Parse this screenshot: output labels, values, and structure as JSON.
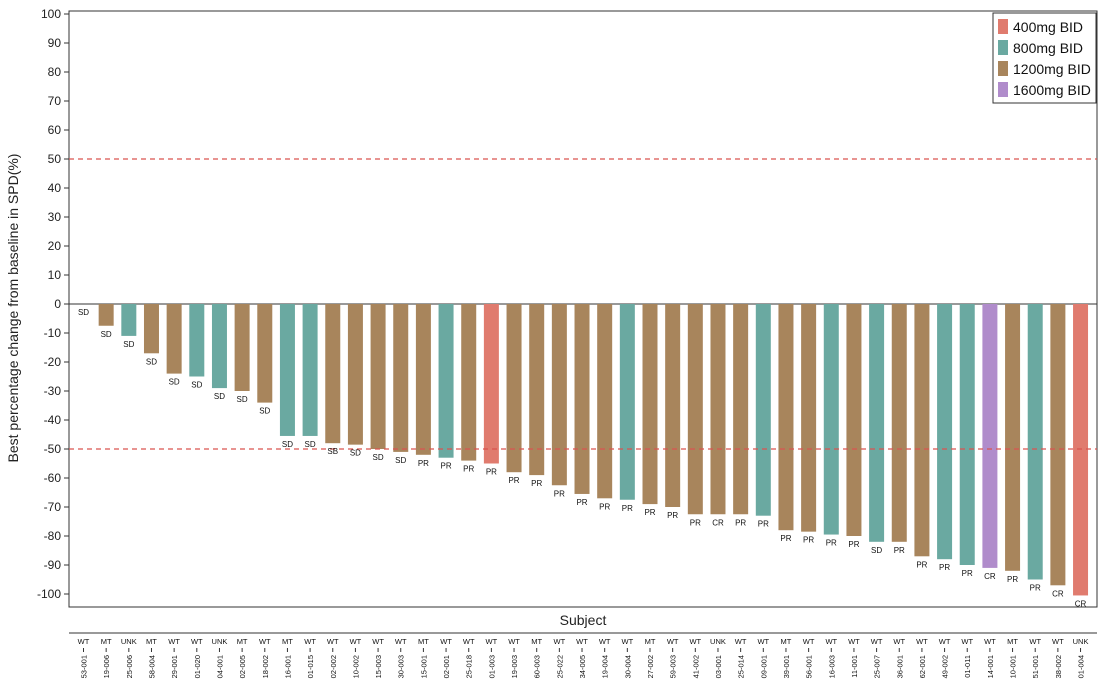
{
  "chart_data": {
    "type": "bar",
    "title": "",
    "xlabel": "Subject",
    "ylabel": "Best percentage change from baseline in SPD(%)",
    "ylim": [
      -100,
      100
    ],
    "yticks": [
      100,
      90,
      80,
      70,
      60,
      50,
      40,
      30,
      20,
      10,
      0,
      -10,
      -20,
      -30,
      -40,
      -50,
      -60,
      -70,
      -80,
      -90,
      -100
    ],
    "reference_lines": [
      50,
      -50
    ],
    "grid": false,
    "legend_position": "top-right",
    "legend": [
      {
        "name": "400mg BID",
        "color": "#E07B6E"
      },
      {
        "name": "800mg BID",
        "color": "#6AA9A1"
      },
      {
        "name": "1200mg BID",
        "color": "#A8855C"
      },
      {
        "name": "1600mg BID",
        "color": "#B08CCB"
      }
    ],
    "categories": [
      "53-001",
      "19-006",
      "25-006",
      "58-004",
      "29-001",
      "01-020",
      "04-001",
      "02-005",
      "18-002",
      "16-001",
      "01-015",
      "02-002",
      "10-002",
      "15-003",
      "30-003",
      "15-001",
      "02-001",
      "25-018",
      "01-003",
      "19-003",
      "60-003",
      "25-022",
      "34-005",
      "19-004",
      "30-004",
      "27-002",
      "59-003",
      "41-002",
      "03-001",
      "25-014",
      "09-001",
      "39-001",
      "56-001",
      "16-003",
      "11-001",
      "25-007",
      "36-001",
      "62-001",
      "49-002",
      "01-011",
      "14-001",
      "10-001",
      "51-001",
      "38-002",
      "01-004"
    ],
    "genotype": [
      "WT",
      "MT",
      "UNK",
      "MT",
      "WT",
      "WT",
      "UNK",
      "MT",
      "WT",
      "MT",
      "WT",
      "WT",
      "WT",
      "WT",
      "WT",
      "MT",
      "WT",
      "WT",
      "WT",
      "WT",
      "MT",
      "WT",
      "WT",
      "WT",
      "WT",
      "MT",
      "WT",
      "WT",
      "UNK",
      "WT",
      "WT",
      "MT",
      "WT",
      "WT",
      "WT",
      "WT",
      "WT",
      "WT",
      "WT",
      "WT",
      "WT",
      "MT",
      "WT",
      "WT",
      "UNK"
    ],
    "values": [
      0,
      -7.5,
      -11,
      -17,
      -24,
      -25,
      -29,
      -30,
      -34,
      -45.5,
      -45.5,
      -48,
      -48.5,
      -50,
      -51,
      -52,
      -53,
      -54,
      -55,
      -58,
      -59,
      -62.5,
      -65.5,
      -67,
      -67.5,
      -69,
      -70,
      -72.5,
      -72.5,
      -72.5,
      -73,
      -78,
      -78.5,
      -79.5,
      -80,
      -82,
      -82,
      -87,
      -88,
      -90,
      -91,
      -92,
      -95,
      -97,
      -100.5
    ],
    "dose": [
      "1200mg BID",
      "1200mg BID",
      "800mg BID",
      "1200mg BID",
      "1200mg BID",
      "800mg BID",
      "800mg BID",
      "1200mg BID",
      "1200mg BID",
      "800mg BID",
      "800mg BID",
      "1200mg BID",
      "1200mg BID",
      "1200mg BID",
      "1200mg BID",
      "1200mg BID",
      "800mg BID",
      "1200mg BID",
      "400mg BID",
      "1200mg BID",
      "1200mg BID",
      "1200mg BID",
      "1200mg BID",
      "1200mg BID",
      "800mg BID",
      "1200mg BID",
      "1200mg BID",
      "1200mg BID",
      "1200mg BID",
      "1200mg BID",
      "800mg BID",
      "1200mg BID",
      "1200mg BID",
      "800mg BID",
      "1200mg BID",
      "800mg BID",
      "1200mg BID",
      "1200mg BID",
      "800mg BID",
      "800mg BID",
      "1600mg BID",
      "1200mg BID",
      "800mg BID",
      "1200mg BID",
      "400mg BID"
    ],
    "response": [
      "SD",
      "SD",
      "SD",
      "SD",
      "SD",
      "SD",
      "SD",
      "SD",
      "SD",
      "SD",
      "SD",
      "SB",
      "SD",
      "SD",
      "SD",
      "PR",
      "PR",
      "PR",
      "PR",
      "PR",
      "PR",
      "PR",
      "PR",
      "PR",
      "PR",
      "PR",
      "PR",
      "PR",
      "CR",
      "PR",
      "PR",
      "PR",
      "PR",
      "PR",
      "PR",
      "SD",
      "PR",
      "PR",
      "PR",
      "PR",
      "CR",
      "PR",
      "PR",
      "CR",
      "CR"
    ]
  }
}
